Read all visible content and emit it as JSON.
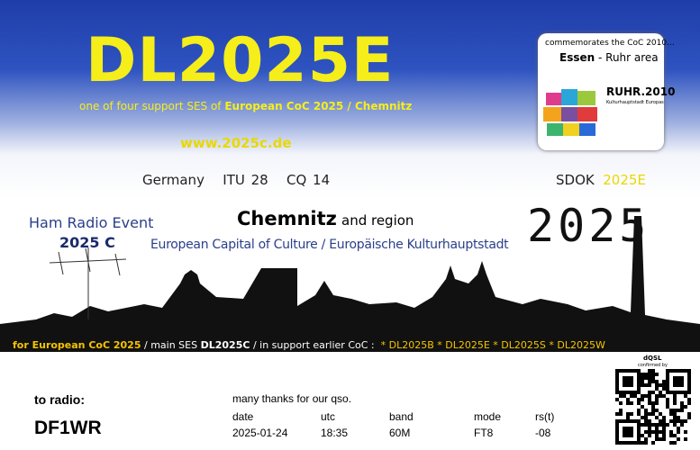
{
  "header": {
    "callsign": "DL2025E",
    "subtitle_plain": "one of four support SES of",
    "subtitle_bold": "European CoC 2025 / Chemnitz",
    "url": "www.2025c.de",
    "country": "Germany",
    "itu": "ITU 28",
    "cq": "CQ 14",
    "sdok_label": "SDOK",
    "sdok_value": "2025E"
  },
  "badge": {
    "text": "commemorates the CoC 2010...",
    "city": "Essen",
    "region": "- Ruhr area",
    "logo": "RUHR.2010",
    "logo_sub": "Kulturhauptstadt Europas"
  },
  "banner": {
    "event": "Ham Radio Event",
    "event_code": "2025 C",
    "city": "Chemnitz",
    "city_suffix": "and region",
    "tagline": "European Capital of Culture / Europäische Kulturhauptstadt",
    "year": "2025"
  },
  "strip": {
    "part1": "for European CoC 2025",
    "part2": "/ main SES",
    "part3": "DL2025C",
    "part4": "/ in support earlier CoC :",
    "part5": "* DL2025B * DL2025E * DL2025S * DL2025W"
  },
  "qso": {
    "to_label": "to radio:",
    "to_call": "DF1WR",
    "thanks": "many thanks for our qso.",
    "headers": [
      "date",
      "utc",
      "band",
      "mode",
      "rs(t)"
    ],
    "values": [
      "2025-01-24",
      "18:35",
      "60M",
      "FT8",
      "-08"
    ]
  },
  "dqsl": {
    "title": "dQSL",
    "subtitle": "confirmed by"
  }
}
